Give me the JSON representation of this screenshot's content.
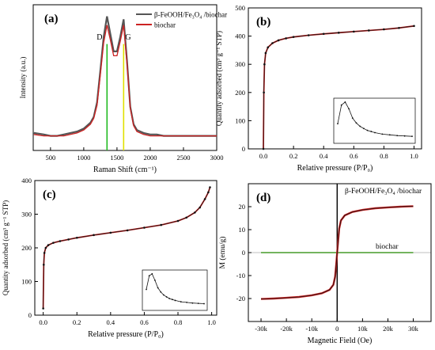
{
  "colors": {
    "composite": "#555555",
    "biochar": "#cc2222",
    "d_band": "#22bb22",
    "g_band": "#e0e000",
    "isotherm": "#111111",
    "isotherm_fit": "#cc2222",
    "biochar_mag": "#55bb33",
    "axis": "#000000"
  },
  "chart_data": [
    {
      "panel": "(a)",
      "type": "line",
      "xlabel": "Raman Shift (cm⁻¹)",
      "ylabel": "Intensity (a.u.)",
      "xlim": [
        240,
        3000
      ],
      "ylim": [
        0,
        1
      ],
      "x_ticks": [
        "500",
        "1000",
        "1500",
        "2000",
        "2500",
        "3000"
      ],
      "y_ticks": [],
      "legend": "top-right",
      "band_labels": [
        "D",
        "G"
      ],
      "band_positions": [
        1350,
        1600
      ],
      "series": [
        {
          "name": "β-FeOOH/Fe₃O₄ /biochar",
          "x": [
            250,
            400,
            500,
            600,
            700,
            800,
            900,
            1000,
            1100,
            1150,
            1200,
            1250,
            1300,
            1350,
            1400,
            1450,
            1500,
            1550,
            1600,
            1650,
            1700,
            1750,
            1800,
            1900,
            2000,
            2100,
            2200,
            2300,
            2400,
            2500,
            2600,
            2700,
            2800,
            2900,
            3000
          ],
          "values": [
            0.12,
            0.11,
            0.1,
            0.1,
            0.11,
            0.12,
            0.13,
            0.15,
            0.19,
            0.23,
            0.33,
            0.55,
            0.78,
            0.92,
            0.8,
            0.68,
            0.68,
            0.78,
            0.9,
            0.62,
            0.3,
            0.18,
            0.14,
            0.12,
            0.11,
            0.11,
            0.1,
            0.1,
            0.1,
            0.1,
            0.1,
            0.1,
            0.1,
            0.1,
            0.1
          ]
        },
        {
          "name": "biochar",
          "x": [
            250,
            400,
            500,
            600,
            700,
            800,
            900,
            1000,
            1100,
            1150,
            1200,
            1250,
            1300,
            1350,
            1400,
            1450,
            1500,
            1550,
            1600,
            1650,
            1700,
            1750,
            1800,
            1900,
            2000,
            2100,
            2200,
            2300,
            2400,
            2500,
            2600,
            2700,
            2800,
            2900,
            3000
          ],
          "values": [
            0.11,
            0.1,
            0.1,
            0.1,
            0.1,
            0.11,
            0.12,
            0.14,
            0.18,
            0.22,
            0.31,
            0.52,
            0.74,
            0.86,
            0.76,
            0.65,
            0.65,
            0.75,
            0.86,
            0.6,
            0.29,
            0.17,
            0.13,
            0.11,
            0.1,
            0.1,
            0.1,
            0.1,
            0.1,
            0.1,
            0.1,
            0.1,
            0.1,
            0.1,
            0.1
          ]
        }
      ]
    },
    {
      "panel": "(b)",
      "type": "line",
      "xlabel": "Relative pressure (P/P₀)",
      "ylabel": "Quantity adsorbed (cm³ g⁻¹ STP)",
      "xlim": [
        -0.1,
        1.05
      ],
      "ylim": [
        0,
        500
      ],
      "x_ticks": [
        "0.0",
        "0.2",
        "0.4",
        "0.6",
        "0.8",
        "1.0"
      ],
      "y_ticks": [
        "0",
        "100",
        "200",
        "300",
        "400",
        "500"
      ],
      "series": [
        {
          "x": [
            0.0,
            0.003,
            0.007,
            0.015,
            0.03,
            0.06,
            0.1,
            0.15,
            0.2,
            0.3,
            0.4,
            0.5,
            0.6,
            0.7,
            0.8,
            0.9,
            1.0
          ],
          "values": [
            0,
            200,
            300,
            340,
            360,
            375,
            385,
            392,
            397,
            403,
            408,
            412,
            416,
            420,
            424,
            429,
            436
          ]
        }
      ],
      "inset": {
        "type": "line",
        "x": [
          0,
          5,
          10,
          15,
          20,
          25,
          30,
          35,
          40,
          45,
          50,
          60,
          70,
          80,
          90,
          100
        ],
        "values": [
          0.4,
          0.9,
          0.98,
          0.8,
          0.55,
          0.42,
          0.33,
          0.27,
          0.22,
          0.19,
          0.16,
          0.12,
          0.1,
          0.08,
          0.07,
          0.06
        ]
      }
    },
    {
      "panel": "(c)",
      "type": "line",
      "xlabel": "Relative pressure (P/P₀)",
      "ylabel": "Quantity adsorbed (cm³ g⁻¹ STP)",
      "xlim": [
        -0.05,
        1.03
      ],
      "ylim": [
        0,
        400
      ],
      "x_ticks": [
        "0.0",
        "0.2",
        "0.4",
        "0.6",
        "0.8",
        "1.0"
      ],
      "y_ticks": [
        "0",
        "100",
        "200",
        "300",
        "400"
      ],
      "series": [
        {
          "x": [
            0.0,
            0.003,
            0.007,
            0.015,
            0.03,
            0.06,
            0.1,
            0.15,
            0.2,
            0.3,
            0.4,
            0.5,
            0.6,
            0.7,
            0.8,
            0.85,
            0.9,
            0.93,
            0.96,
            0.98,
            0.99
          ],
          "values": [
            20,
            150,
            185,
            200,
            208,
            215,
            220,
            225,
            230,
            238,
            245,
            252,
            260,
            268,
            280,
            290,
            305,
            320,
            345,
            365,
            380
          ]
        }
      ],
      "inset": {
        "type": "line",
        "x": [
          0,
          5,
          10,
          15,
          20,
          25,
          30,
          35,
          40,
          45,
          50,
          60,
          70,
          80,
          90,
          100
        ],
        "values": [
          0.5,
          0.92,
          0.98,
          0.78,
          0.55,
          0.42,
          0.33,
          0.27,
          0.22,
          0.19,
          0.16,
          0.12,
          0.1,
          0.08,
          0.07,
          0.06
        ]
      }
    },
    {
      "panel": "(d)",
      "type": "line",
      "xlabel": "Magnetic Field (Oe)",
      "ylabel": "M (emu/g)",
      "xlim": [
        -35000,
        37000
      ],
      "ylim": [
        -30,
        30
      ],
      "x_ticks": [
        "-30k",
        "-20k",
        "-10k",
        "0",
        "10k",
        "20k",
        "30k"
      ],
      "y_ticks": [
        "-20",
        "-10",
        "0",
        "10",
        "20"
      ],
      "series": [
        {
          "name": "β-FeOOH/Fe₃O₄ /biochar",
          "x": [
            -30000,
            -25000,
            -20000,
            -15000,
            -10000,
            -6000,
            -3000,
            -1500,
            -800,
            -400,
            0,
            400,
            800,
            1500,
            3000,
            6000,
            10000,
            15000,
            20000,
            25000,
            30000
          ],
          "values": [
            -20.2,
            -20.0,
            -19.7,
            -19.3,
            -18.6,
            -17.7,
            -16.2,
            -14.0,
            -10.5,
            -5.5,
            0,
            5.5,
            10.5,
            14.0,
            16.2,
            17.7,
            18.6,
            19.3,
            19.7,
            20.0,
            20.2
          ]
        },
        {
          "name": "biochar",
          "x": [
            -30000,
            30000
          ],
          "values": [
            0,
            0
          ]
        }
      ]
    }
  ]
}
